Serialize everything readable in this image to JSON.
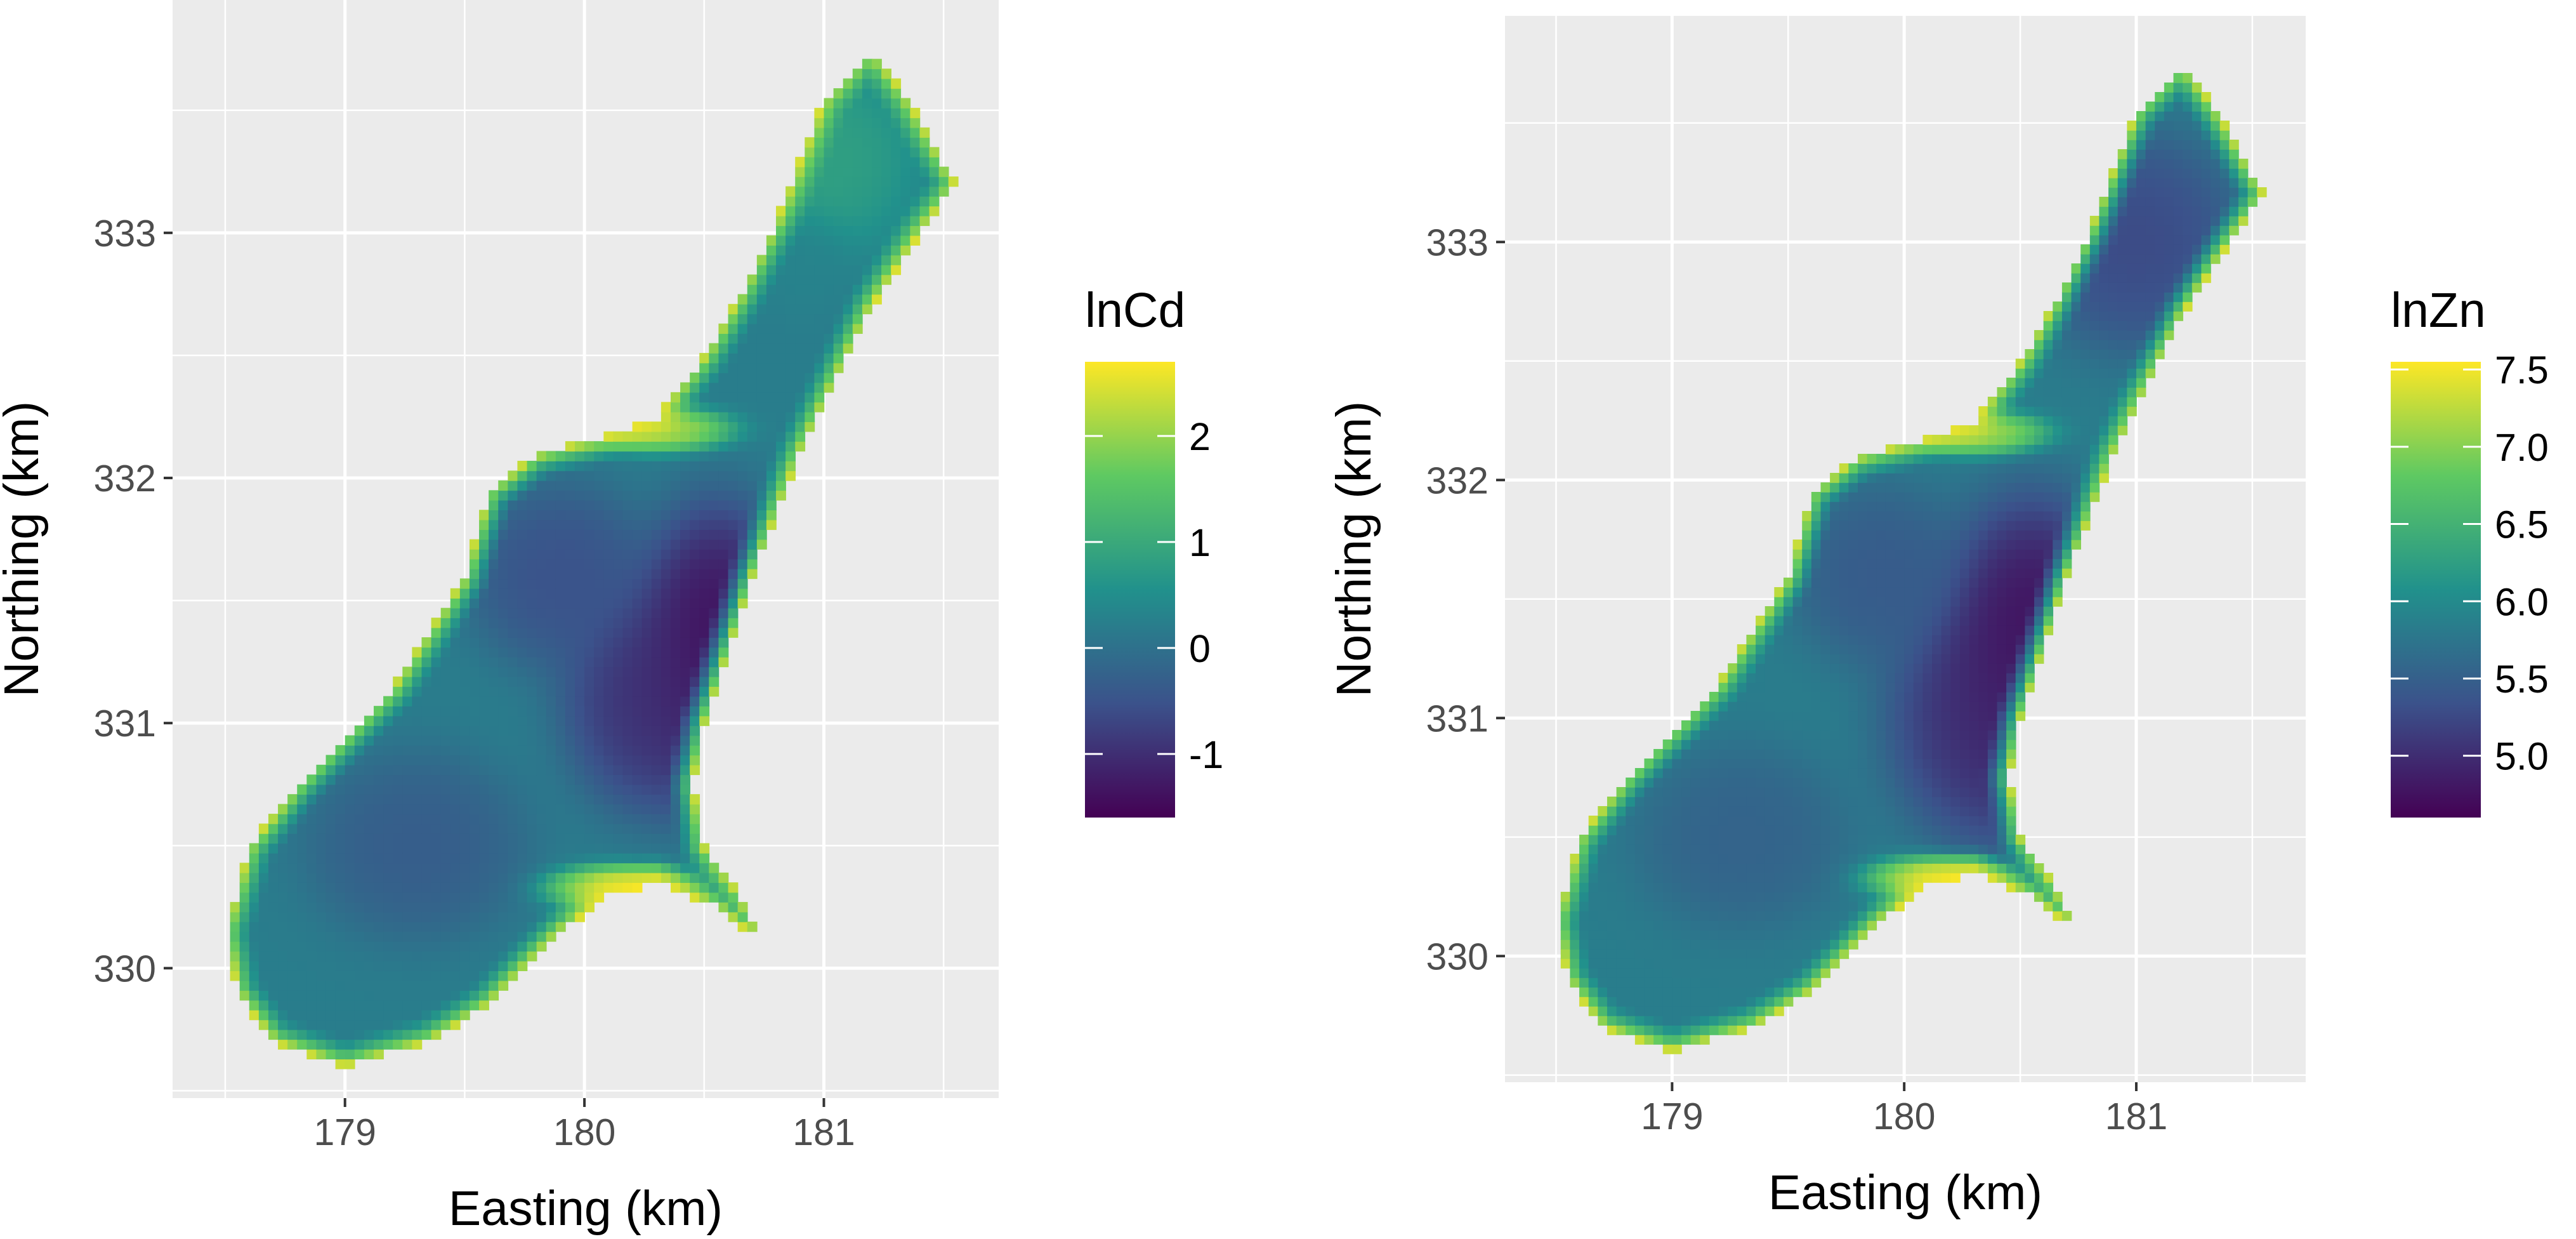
{
  "chart_data": [
    {
      "type": "heatmap",
      "title": "",
      "xlabel": "Easting (km)",
      "ylabel": "Northing (km)",
      "xticks": [
        179,
        180,
        181
      ],
      "yticks": [
        330,
        331,
        332,
        333
      ],
      "xlim": [
        178.28,
        181.73
      ],
      "ylim": [
        329.47,
        333.95
      ],
      "legend": {
        "title": "lnCd",
        "position": "right",
        "ticks": [
          -1,
          0,
          1,
          2
        ],
        "range": [
          -1.6,
          2.7
        ]
      },
      "fill_variable": "lnCd",
      "colormap": [
        "#440154",
        "#3b528b",
        "#21918c",
        "#5ec962",
        "#fde725"
      ],
      "grid": true,
      "region_outline": [
        [
          178.5,
          330.15
        ],
        [
          178.6,
          330.5
        ],
        [
          178.8,
          330.75
        ],
        [
          179.0,
          330.95
        ],
        [
          179.2,
          331.15
        ],
        [
          179.5,
          331.6
        ],
        [
          179.6,
          331.95
        ],
        [
          179.8,
          332.1
        ],
        [
          180.0,
          332.15
        ],
        [
          180.3,
          332.25
        ],
        [
          180.5,
          332.5
        ],
        [
          180.65,
          332.75
        ],
        [
          180.8,
          333.05
        ],
        [
          180.9,
          333.3
        ],
        [
          181.0,
          333.55
        ],
        [
          181.2,
          333.75
        ],
        [
          181.35,
          333.55
        ],
        [
          181.55,
          333.2
        ],
        [
          181.4,
          333.0
        ],
        [
          181.2,
          332.7
        ],
        [
          180.9,
          332.1
        ],
        [
          180.7,
          331.6
        ],
        [
          180.5,
          331.0
        ],
        [
          180.45,
          330.75
        ],
        [
          180.5,
          330.5
        ],
        [
          180.65,
          330.3
        ],
        [
          180.75,
          330.1
        ],
        [
          180.55,
          330.25
        ],
        [
          180.3,
          330.35
        ],
        [
          180.1,
          330.3
        ],
        [
          179.9,
          330.15
        ],
        [
          179.75,
          330.0
        ],
        [
          179.6,
          329.85
        ],
        [
          179.35,
          329.7
        ],
        [
          179.0,
          329.6
        ],
        [
          178.7,
          329.7
        ],
        [
          178.55,
          329.9
        ]
      ],
      "hotspots": [
        {
          "x": 180.55,
          "y": 331.3,
          "value": -1.6,
          "sx": 0.22,
          "sy": 0.38
        },
        {
          "x": 180.3,
          "y": 331.1,
          "value": -1.1,
          "sx": 0.25,
          "sy": 0.3
        },
        {
          "x": 179.9,
          "y": 331.6,
          "value": -0.6,
          "sx": 0.25,
          "sy": 0.25
        },
        {
          "x": 179.3,
          "y": 330.5,
          "value": -0.4,
          "sx": 0.3,
          "sy": 0.25
        },
        {
          "x": 180.9,
          "y": 332.9,
          "value": 0.3,
          "sx": 0.15,
          "sy": 0.15
        },
        {
          "x": 181.0,
          "y": 333.3,
          "value": 0.9,
          "sx": 0.25,
          "sy": 0.25
        },
        {
          "x": 180.15,
          "y": 330.33,
          "value": 2.6,
          "sx": 0.2,
          "sy": 0.06
        },
        {
          "x": 180.3,
          "y": 332.2,
          "value": 2.4,
          "sx": 0.2,
          "sy": 0.06
        }
      ]
    },
    {
      "type": "heatmap",
      "title": "",
      "xlabel": "Easting (km)",
      "ylabel": "Northing (km)",
      "xticks": [
        179,
        180,
        181
      ],
      "yticks": [
        330,
        331,
        332,
        333
      ],
      "xlim": [
        178.28,
        181.73
      ],
      "ylim": [
        329.47,
        333.95
      ],
      "legend": {
        "title": "lnZn",
        "position": "right",
        "ticks": [
          5.0,
          5.5,
          6.0,
          6.5,
          7.0,
          7.5
        ],
        "range": [
          4.6,
          7.55
        ]
      },
      "fill_variable": "lnZn",
      "colormap": [
        "#440154",
        "#3b528b",
        "#21918c",
        "#5ec962",
        "#fde725"
      ],
      "grid": true,
      "region_outline": [
        [
          178.5,
          330.15
        ],
        [
          178.6,
          330.5
        ],
        [
          178.8,
          330.75
        ],
        [
          179.0,
          330.95
        ],
        [
          179.2,
          331.15
        ],
        [
          179.5,
          331.6
        ],
        [
          179.6,
          331.95
        ],
        [
          179.8,
          332.1
        ],
        [
          180.0,
          332.15
        ],
        [
          180.3,
          332.25
        ],
        [
          180.5,
          332.5
        ],
        [
          180.65,
          332.75
        ],
        [
          180.8,
          333.05
        ],
        [
          180.9,
          333.3
        ],
        [
          181.0,
          333.55
        ],
        [
          181.2,
          333.75
        ],
        [
          181.35,
          333.55
        ],
        [
          181.55,
          333.2
        ],
        [
          181.4,
          333.0
        ],
        [
          181.2,
          332.7
        ],
        [
          180.9,
          332.1
        ],
        [
          180.7,
          331.6
        ],
        [
          180.5,
          331.0
        ],
        [
          180.45,
          330.75
        ],
        [
          180.5,
          330.5
        ],
        [
          180.65,
          330.3
        ],
        [
          180.75,
          330.1
        ],
        [
          180.55,
          330.25
        ],
        [
          180.3,
          330.35
        ],
        [
          180.1,
          330.3
        ],
        [
          179.9,
          330.15
        ],
        [
          179.75,
          330.0
        ],
        [
          179.6,
          329.85
        ],
        [
          179.35,
          329.7
        ],
        [
          179.0,
          329.6
        ],
        [
          178.7,
          329.7
        ],
        [
          178.55,
          329.9
        ]
      ],
      "hotspots": [
        {
          "x": 180.55,
          "y": 331.3,
          "value": 4.6,
          "sx": 0.25,
          "sy": 0.4
        },
        {
          "x": 180.4,
          "y": 331.0,
          "value": 4.9,
          "sx": 0.3,
          "sy": 0.35
        },
        {
          "x": 179.9,
          "y": 331.6,
          "value": 5.4,
          "sx": 0.25,
          "sy": 0.25
        },
        {
          "x": 179.3,
          "y": 330.5,
          "value": 5.5,
          "sx": 0.3,
          "sy": 0.25
        },
        {
          "x": 181.0,
          "y": 333.0,
          "value": 5.2,
          "sx": 0.3,
          "sy": 0.3
        },
        {
          "x": 180.15,
          "y": 330.33,
          "value": 7.5,
          "sx": 0.2,
          "sy": 0.06
        },
        {
          "x": 180.3,
          "y": 332.2,
          "value": 7.3,
          "sx": 0.2,
          "sy": 0.06
        }
      ]
    }
  ]
}
